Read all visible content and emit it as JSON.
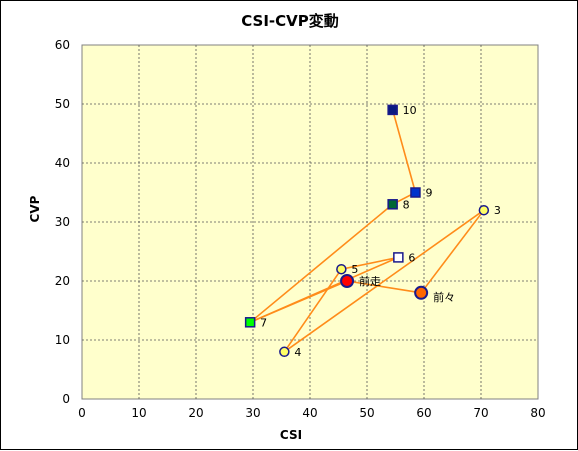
{
  "chart_data": {
    "type": "scatter",
    "title": "CSI-CVP変動",
    "xlabel": "CSI",
    "ylabel": "CVP",
    "xlim": [
      0,
      80
    ],
    "ylim": [
      0,
      60
    ],
    "xticks": [
      "0",
      "10",
      "20",
      "30",
      "40",
      "50",
      "60",
      "70",
      "80"
    ],
    "yticks": [
      "0",
      "10",
      "20",
      "30",
      "40",
      "50",
      "60"
    ],
    "grid": true,
    "plot_background": "#ffffcc",
    "line_color": "#ff8c1a",
    "marker_edge": "#1a1a8c",
    "connection_order": [
      "3",
      "4",
      "5",
      "6",
      "7",
      "8",
      "9",
      "10"
    ],
    "points": [
      {
        "label": "3",
        "x": 70.5,
        "y": 32,
        "marker": "circle",
        "fill": "#ffff66",
        "size": "small"
      },
      {
        "label": "4",
        "x": 35.5,
        "y": 8,
        "marker": "circle",
        "fill": "#ffff66",
        "size": "small"
      },
      {
        "label": "5",
        "x": 45.5,
        "y": 22,
        "marker": "circle",
        "fill": "#ffff66",
        "size": "small"
      },
      {
        "label": "6",
        "x": 55.5,
        "y": 24,
        "marker": "square",
        "fill": "#ffffff",
        "size": "small"
      },
      {
        "label": "7",
        "x": 29.5,
        "y": 13,
        "marker": "square",
        "fill": "#00ff00",
        "size": "small"
      },
      {
        "label": "8",
        "x": 54.5,
        "y": 33,
        "marker": "square",
        "fill": "#006633",
        "size": "small"
      },
      {
        "label": "9",
        "x": 58.5,
        "y": 35,
        "marker": "square",
        "fill": "#0033cc",
        "size": "small"
      },
      {
        "label": "10",
        "x": 54.5,
        "y": 49,
        "marker": "square",
        "fill": "#0a1a80",
        "size": "small"
      },
      {
        "label": "前々",
        "x": 59.5,
        "y": 18,
        "marker": "circle",
        "fill": "#ff6600",
        "size": "large"
      },
      {
        "label": "前走",
        "x": 46.5,
        "y": 20,
        "marker": "circle",
        "fill": "#ff0000",
        "size": "large"
      }
    ],
    "extra_segments": [
      [
        "前走",
        "7"
      ],
      [
        "前走",
        "前々"
      ],
      [
        "前々",
        "3"
      ]
    ]
  }
}
